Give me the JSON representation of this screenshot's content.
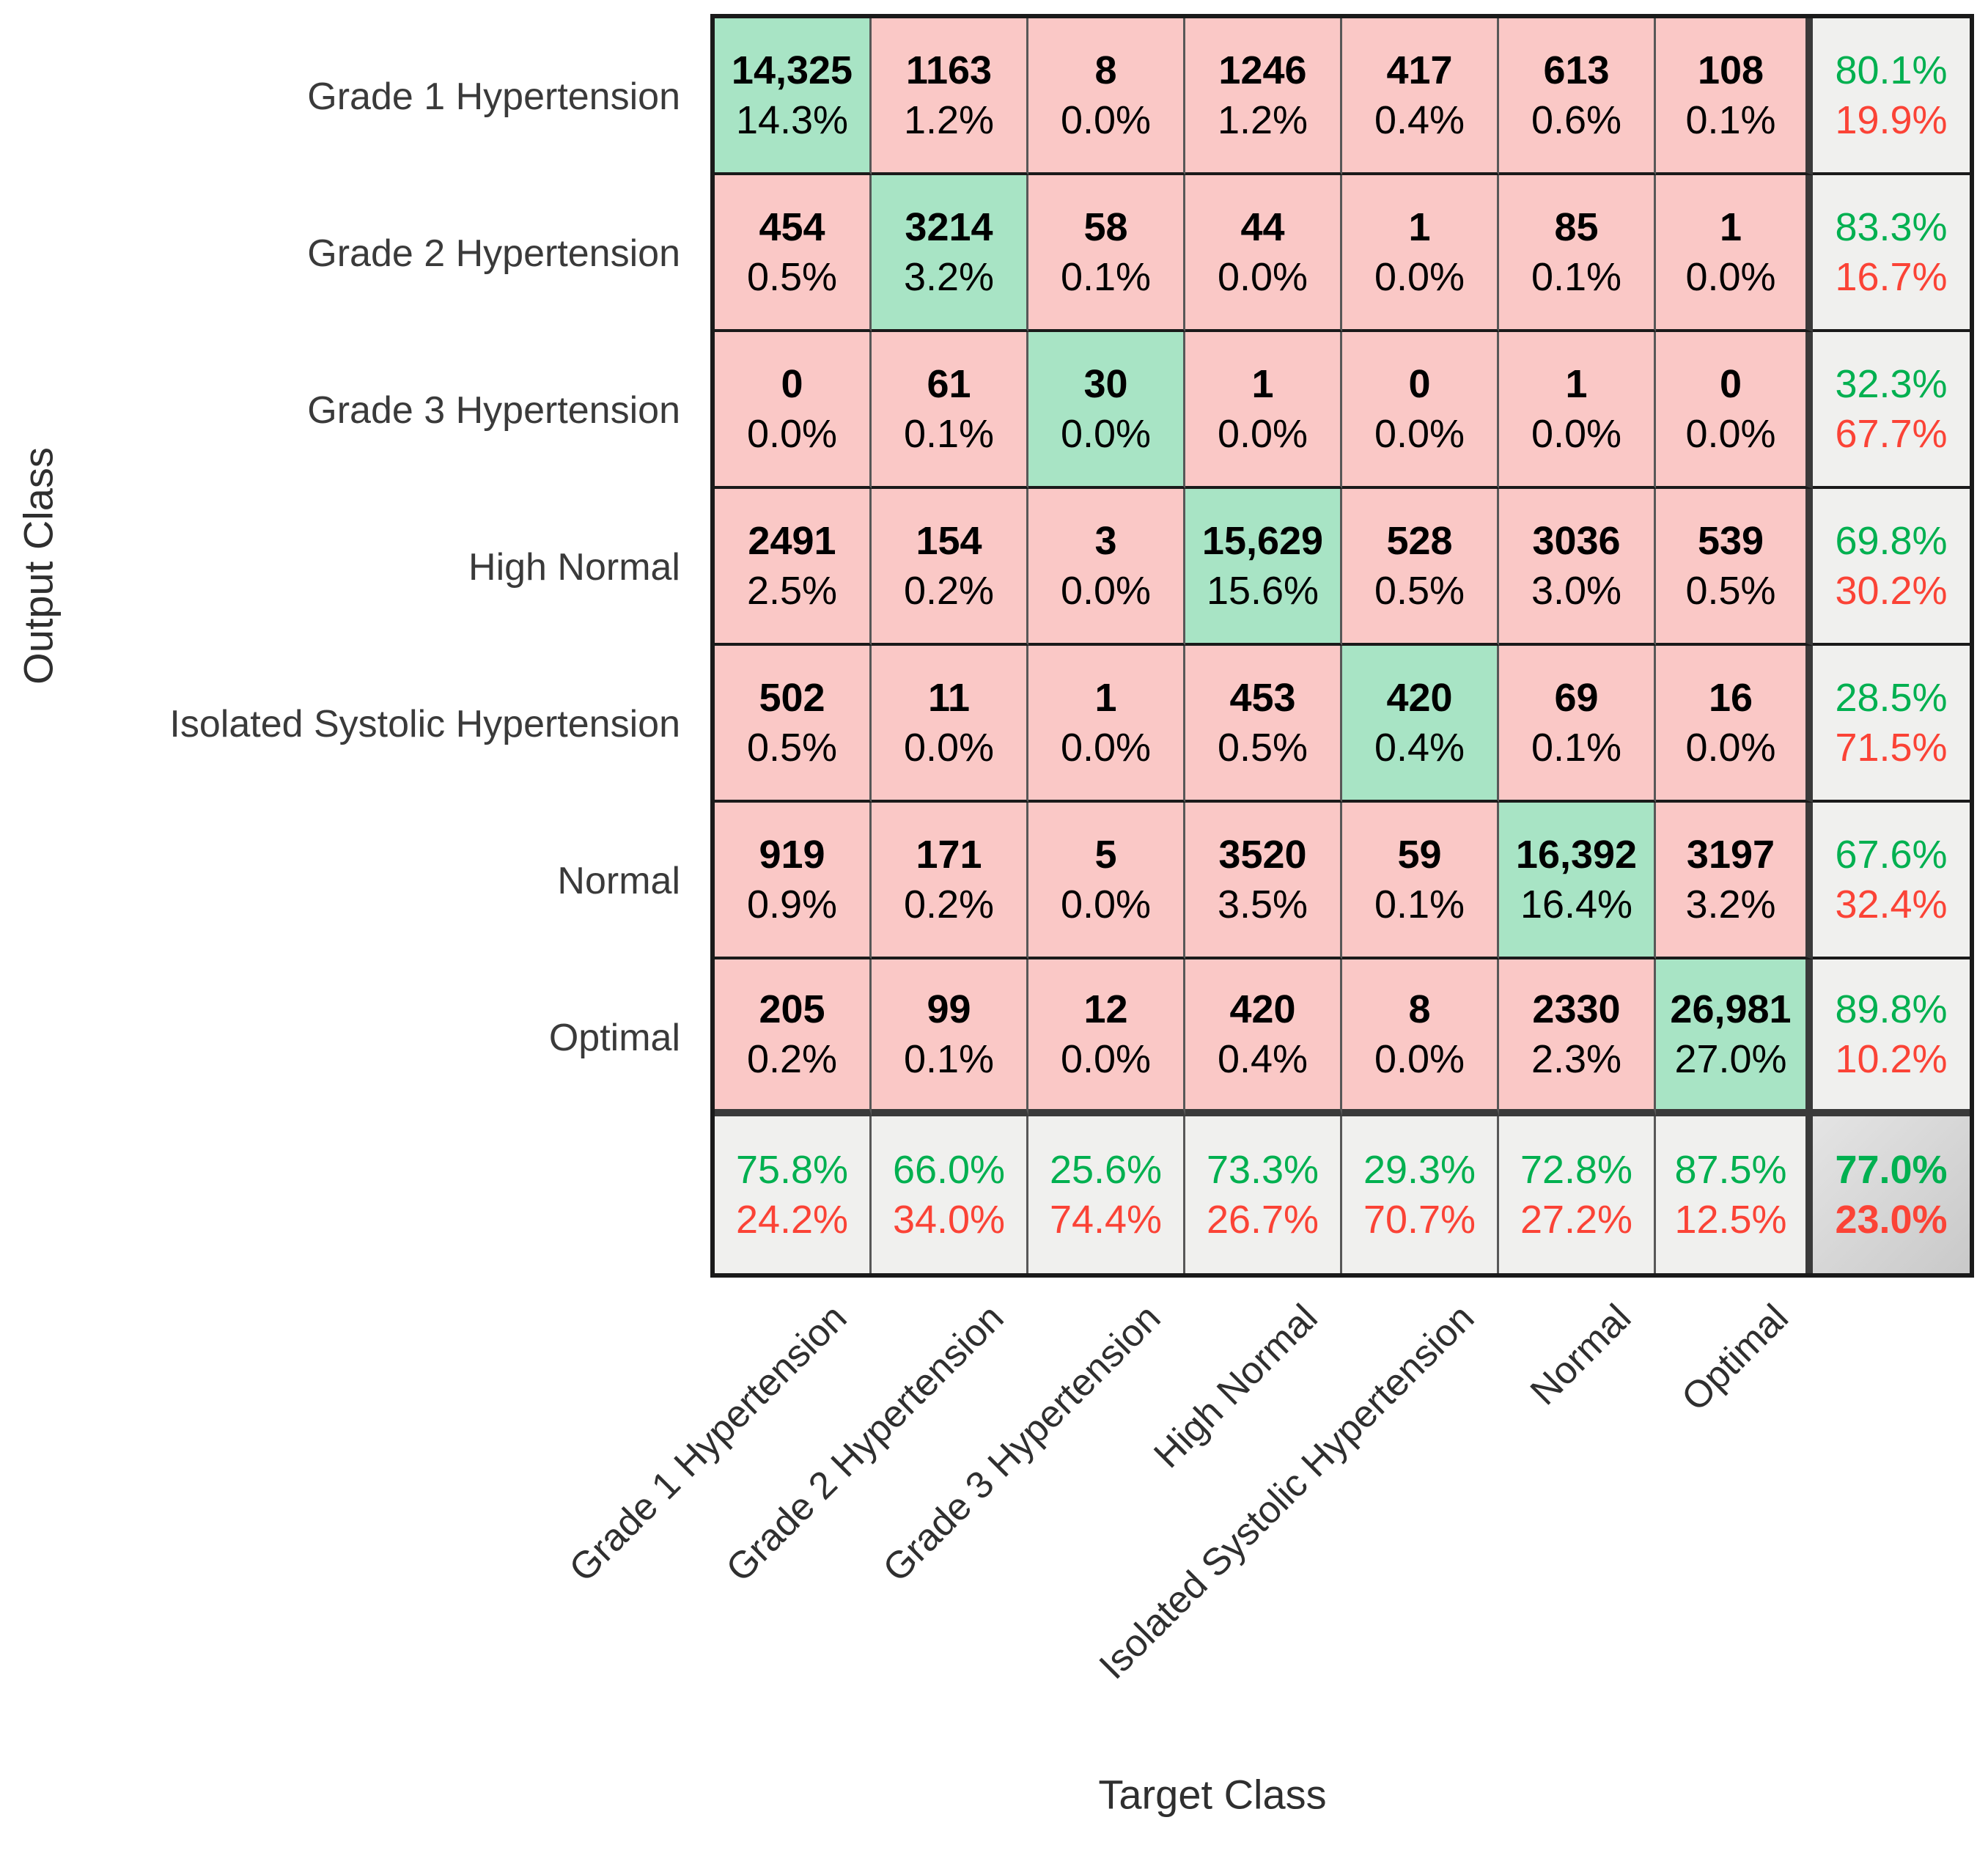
{
  "figure": {
    "output_axis_label": "Output Class",
    "target_axis_label": "Target Class"
  },
  "classes": [
    "Grade 1 Hypertension",
    "Grade 2 Hypertension",
    "Grade 3 Hypertension",
    "High Normal",
    "Isolated Systolic Hypertension",
    "Normal",
    "Optimal"
  ],
  "chart_data": {
    "type": "heatmap",
    "subtype": "confusion-matrix",
    "xlabel": "Target Class",
    "ylabel": "Output Class",
    "categories": [
      "Grade 1 Hypertension",
      "Grade 2 Hypertension",
      "Grade 3 Hypertension",
      "High Normal",
      "Isolated Systolic Hypertension",
      "Normal",
      "Optimal"
    ],
    "counts": [
      [
        14325,
        1163,
        8,
        1246,
        417,
        613,
        108
      ],
      [
        454,
        3214,
        58,
        44,
        1,
        85,
        1
      ],
      [
        0,
        61,
        30,
        1,
        0,
        1,
        0
      ],
      [
        2491,
        154,
        3,
        15629,
        528,
        3036,
        539
      ],
      [
        502,
        11,
        1,
        453,
        420,
        69,
        16
      ],
      [
        919,
        171,
        5,
        3520,
        59,
        16392,
        3197
      ],
      [
        205,
        99,
        12,
        420,
        8,
        2330,
        26981
      ]
    ],
    "counts_display": [
      [
        "14,325",
        "1163",
        "8",
        "1246",
        "417",
        "613",
        "108"
      ],
      [
        "454",
        "3214",
        "58",
        "44",
        "1",
        "85",
        "1"
      ],
      [
        "0",
        "61",
        "30",
        "1",
        "0",
        "1",
        "0"
      ],
      [
        "2491",
        "154",
        "3",
        "15,629",
        "528",
        "3036",
        "539"
      ],
      [
        "502",
        "11",
        "1",
        "453",
        "420",
        "69",
        "16"
      ],
      [
        "919",
        "171",
        "5",
        "3520",
        "59",
        "16,392",
        "3197"
      ],
      [
        "205",
        "99",
        "12",
        "420",
        "8",
        "2330",
        "26,981"
      ]
    ],
    "percents": [
      [
        "14.3%",
        "1.2%",
        "0.0%",
        "1.2%",
        "0.4%",
        "0.6%",
        "0.1%"
      ],
      [
        "0.5%",
        "3.2%",
        "0.1%",
        "0.0%",
        "0.0%",
        "0.1%",
        "0.0%"
      ],
      [
        "0.0%",
        "0.1%",
        "0.0%",
        "0.0%",
        "0.0%",
        "0.0%",
        "0.0%"
      ],
      [
        "2.5%",
        "0.2%",
        "0.0%",
        "15.6%",
        "0.5%",
        "3.0%",
        "0.5%"
      ],
      [
        "0.5%",
        "0.0%",
        "0.0%",
        "0.5%",
        "0.4%",
        "0.1%",
        "0.0%"
      ],
      [
        "0.9%",
        "0.2%",
        "0.0%",
        "3.5%",
        "0.1%",
        "16.4%",
        "3.2%"
      ],
      [
        "0.2%",
        "0.1%",
        "0.0%",
        "0.4%",
        "0.0%",
        "2.3%",
        "27.0%"
      ]
    ],
    "row_summary": [
      {
        "green": "80.1%",
        "red": "19.9%"
      },
      {
        "green": "83.3%",
        "red": "16.7%"
      },
      {
        "green": "32.3%",
        "red": "67.7%"
      },
      {
        "green": "69.8%",
        "red": "30.2%"
      },
      {
        "green": "28.5%",
        "red": "71.5%"
      },
      {
        "green": "67.6%",
        "red": "32.4%"
      },
      {
        "green": "89.8%",
        "red": "10.2%"
      }
    ],
    "col_summary": [
      {
        "green": "75.8%",
        "red": "24.2%"
      },
      {
        "green": "66.0%",
        "red": "34.0%"
      },
      {
        "green": "25.6%",
        "red": "74.4%"
      },
      {
        "green": "73.3%",
        "red": "26.7%"
      },
      {
        "green": "29.3%",
        "red": "70.7%"
      },
      {
        "green": "72.8%",
        "red": "27.2%"
      },
      {
        "green": "87.5%",
        "red": "12.5%"
      }
    ],
    "overall": {
      "green": "77.0%",
      "red": "23.0%"
    }
  },
  "colors": {
    "diag_bg": "#a8e4c5",
    "offdiag_bg": "#fac8c6",
    "summary_bg": "#f0f0ee",
    "green_text": "#00b050",
    "red_text": "#fb4336"
  }
}
